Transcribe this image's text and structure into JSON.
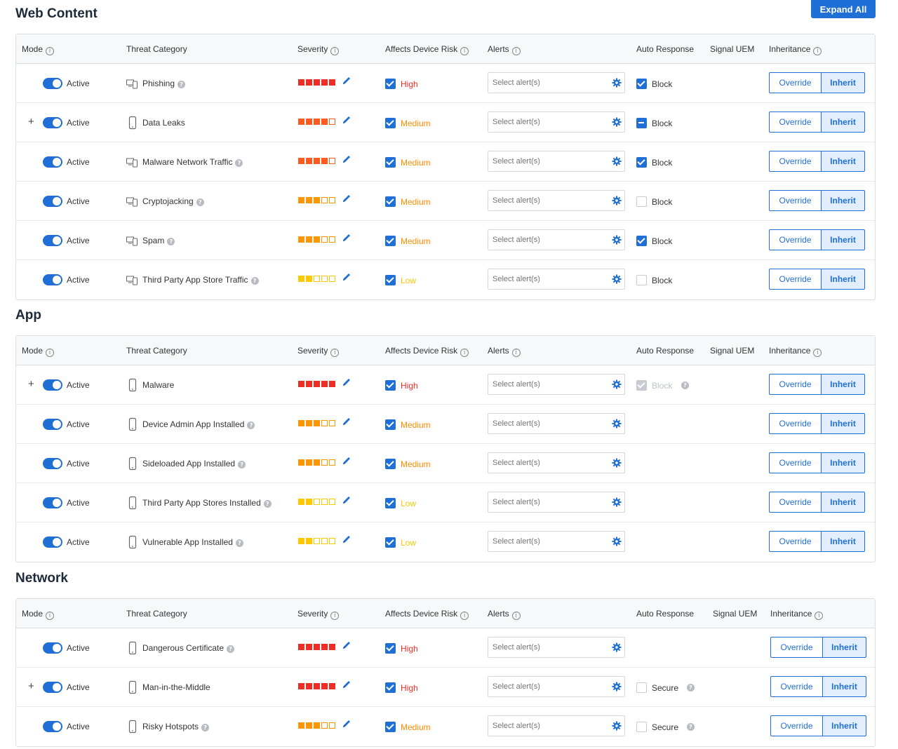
{
  "toolbar": {
    "expand_all_label": "Expand All"
  },
  "columns": {
    "mode": "Mode",
    "threat_category": "Threat Category",
    "severity": "Severity",
    "affects_device_risk": "Affects Device Risk",
    "alerts": "Alerts",
    "auto_response": "Auto Response",
    "signal_uem": "Signal UEM",
    "inheritance": "Inheritance"
  },
  "colors": {
    "accent": "#1f6fd6",
    "high": "#ee2e24",
    "medium": "#ff8c00",
    "low": "#ffc800"
  },
  "sections": [
    {
      "title": "Web Content",
      "rows": [
        {
          "expandable": false,
          "mode": "Active",
          "icon": "devices-icon",
          "category": "Phishing",
          "help": true,
          "severity": 5,
          "sev_color": "#ee2e24",
          "risk_checked": true,
          "risk_label": "High",
          "risk_color": "#ee2e24",
          "alerts_placeholder": "Select alert(s)",
          "auto_response": {
            "state": "checked",
            "label": "Block",
            "help": false
          },
          "override_label": "Override",
          "inherit_label": "Inherit"
        },
        {
          "expandable": true,
          "mode": "Active",
          "icon": "phone-icon",
          "category": "Data Leaks",
          "help": false,
          "severity": 4,
          "sev_color": "#ff5a1f",
          "risk_checked": true,
          "risk_label": "Medium",
          "risk_color": "#ff8c00",
          "alerts_placeholder": "Select alert(s)",
          "auto_response": {
            "state": "partial",
            "label": "Block",
            "help": false
          },
          "override_label": "Override",
          "inherit_label": "Inherit"
        },
        {
          "expandable": false,
          "mode": "Active",
          "icon": "devices-icon",
          "category": "Malware Network Traffic",
          "help": true,
          "severity": 4,
          "sev_color": "#ff5a1f",
          "risk_checked": true,
          "risk_label": "Medium",
          "risk_color": "#ff8c00",
          "alerts_placeholder": "Select alert(s)",
          "auto_response": {
            "state": "checked",
            "label": "Block",
            "help": false
          },
          "override_label": "Override",
          "inherit_label": "Inherit"
        },
        {
          "expandable": false,
          "mode": "Active",
          "icon": "devices-icon",
          "category": "Cryptojacking",
          "help": true,
          "severity": 3,
          "sev_color": "#ff9500",
          "risk_checked": true,
          "risk_label": "Medium",
          "risk_color": "#ff8c00",
          "alerts_placeholder": "Select alert(s)",
          "auto_response": {
            "state": "off",
            "label": "Block",
            "help": false
          },
          "override_label": "Override",
          "inherit_label": "Inherit"
        },
        {
          "expandable": false,
          "mode": "Active",
          "icon": "devices-icon",
          "category": "Spam",
          "help": true,
          "severity": 3,
          "sev_color": "#ff9500",
          "risk_checked": true,
          "risk_label": "Medium",
          "risk_color": "#ff8c00",
          "alerts_placeholder": "Select alert(s)",
          "auto_response": {
            "state": "checked",
            "label": "Block",
            "help": false
          },
          "override_label": "Override",
          "inherit_label": "Inherit"
        },
        {
          "expandable": false,
          "mode": "Active",
          "icon": "devices-icon",
          "category": "Third Party App Store Traffic",
          "help": true,
          "severity": 2,
          "sev_color": "#ffc800",
          "risk_checked": true,
          "risk_label": "Low",
          "risk_color": "#ffc800",
          "alerts_placeholder": "Select alert(s)",
          "auto_response": {
            "state": "off",
            "label": "Block",
            "help": false
          },
          "override_label": "Override",
          "inherit_label": "Inherit"
        }
      ]
    },
    {
      "title": "App",
      "rows": [
        {
          "expandable": true,
          "mode": "Active",
          "icon": "phone-icon",
          "category": "Malware",
          "help": false,
          "severity": 5,
          "sev_color": "#ee2e24",
          "risk_checked": true,
          "risk_label": "High",
          "risk_color": "#ee2e24",
          "alerts_placeholder": "Select alert(s)",
          "auto_response": {
            "state": "disabled",
            "label": "Block",
            "help": true
          },
          "override_label": "Override",
          "inherit_label": "Inherit"
        },
        {
          "expandable": false,
          "mode": "Active",
          "icon": "phone-icon",
          "category": "Device Admin App Installed",
          "help": true,
          "severity": 3,
          "sev_color": "#ff9500",
          "risk_checked": true,
          "risk_label": "Medium",
          "risk_color": "#ff8c00",
          "alerts_placeholder": "Select alert(s)",
          "auto_response": null,
          "override_label": "Override",
          "inherit_label": "Inherit"
        },
        {
          "expandable": false,
          "mode": "Active",
          "icon": "phone-icon",
          "category": "Sideloaded App Installed",
          "help": true,
          "severity": 3,
          "sev_color": "#ff9500",
          "risk_checked": true,
          "risk_label": "Medium",
          "risk_color": "#ff8c00",
          "alerts_placeholder": "Select alert(s)",
          "auto_response": null,
          "override_label": "Override",
          "inherit_label": "Inherit"
        },
        {
          "expandable": false,
          "mode": "Active",
          "icon": "phone-icon",
          "category": "Third Party App Stores Installed",
          "help": true,
          "severity": 2,
          "sev_color": "#ffc800",
          "risk_checked": true,
          "risk_label": "Low",
          "risk_color": "#ffc800",
          "alerts_placeholder": "Select alert(s)",
          "auto_response": null,
          "override_label": "Override",
          "inherit_label": "Inherit"
        },
        {
          "expandable": false,
          "mode": "Active",
          "icon": "phone-icon",
          "category": "Vulnerable App Installed",
          "help": true,
          "severity": 2,
          "sev_color": "#ffc800",
          "risk_checked": true,
          "risk_label": "Low",
          "risk_color": "#ffc800",
          "alerts_placeholder": "Select alert(s)",
          "auto_response": null,
          "override_label": "Override",
          "inherit_label": "Inherit"
        }
      ]
    },
    {
      "title": "Network",
      "rows": [
        {
          "expandable": false,
          "mode": "Active",
          "icon": "phone-icon",
          "category": "Dangerous Certificate",
          "help": true,
          "severity": 5,
          "sev_color": "#ee2e24",
          "risk_checked": true,
          "risk_label": "High",
          "risk_color": "#ee2e24",
          "alerts_placeholder": "Select alert(s)",
          "auto_response": null,
          "override_label": "Override",
          "inherit_label": "Inherit"
        },
        {
          "expandable": true,
          "mode": "Active",
          "icon": "phone-icon",
          "category": "Man-in-the-Middle",
          "help": false,
          "severity": 5,
          "sev_color": "#ee2e24",
          "risk_checked": true,
          "risk_label": "High",
          "risk_color": "#ee2e24",
          "alerts_placeholder": "Select alert(s)",
          "auto_response": {
            "state": "off",
            "label": "Secure",
            "help": true
          },
          "override_label": "Override",
          "inherit_label": "Inherit"
        },
        {
          "expandable": false,
          "mode": "Active",
          "icon": "phone-icon",
          "category": "Risky Hotspots",
          "help": true,
          "severity": 3,
          "sev_color": "#ff9500",
          "risk_checked": true,
          "risk_label": "Medium",
          "risk_color": "#ff8c00",
          "alerts_placeholder": "Select alert(s)",
          "auto_response": {
            "state": "off",
            "label": "Secure",
            "help": true
          },
          "override_label": "Override",
          "inherit_label": "Inherit"
        }
      ]
    }
  ]
}
